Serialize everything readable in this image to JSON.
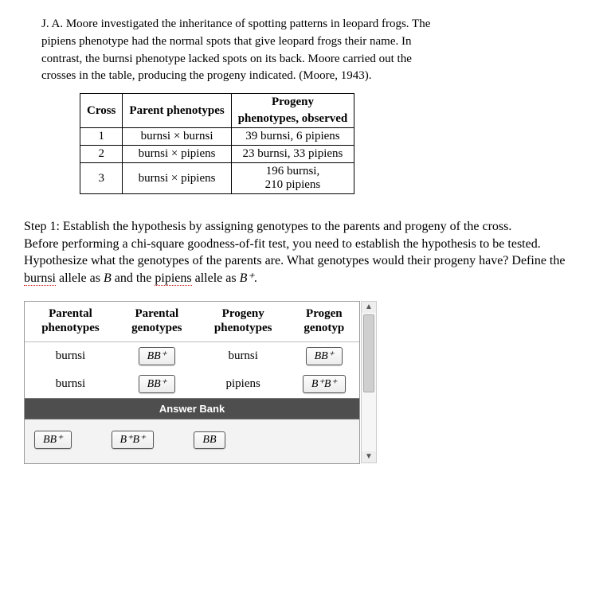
{
  "intro": "J. A. Moore investigated the inheritance of spotting patterns in leopard frogs. The pipiens phenotype had the normal spots that give leopard frogs their name. In contrast, the burnsi phenotype lacked spots on its back. Moore carried out the crosses in the table, producing the progeny indicated. (Moore, 1943).",
  "crossTable": {
    "headers": {
      "c1": "Cross",
      "c2": "Parent phenotypes",
      "c3a": "Progeny",
      "c3b": "phenotypes, observed"
    },
    "rows": [
      {
        "n": "1",
        "parents": "burnsi × burnsi",
        "progeny": "39 burnsi, 6 pipiens"
      },
      {
        "n": "2",
        "parents": "burnsi × pipiens",
        "progeny": "23 burnsi, 33 pipiens"
      },
      {
        "n": "3",
        "parents": "burnsi × pipiens",
        "progeny_line1": "196 burnsi,",
        "progeny_line2": "210 pipiens"
      }
    ]
  },
  "step": {
    "title": "Step 1: Establish the hypothesis by assigning genotypes to the parents and progeny of the cross.",
    "line2": "Before performing a chi-square goodness-of-fit test, you need to establish the hypothesis to be tested.",
    "line3_a": "Hypothesize what the genotypes of the parents are. What genotypes would their progeny have? Define the ",
    "burnsi": "burnsi",
    "mid1": " allele as ",
    "alleleB": "B",
    "mid2": " and the ",
    "pipiens": "pipiens",
    "mid3": " allele as ",
    "alleleBplus": "B⁺",
    "end": "."
  },
  "answerTable": {
    "headers": {
      "h1a": "Parental",
      "h1b": "phenotypes",
      "h2a": "Parental",
      "h2b": "genotypes",
      "h3a": "Progeny",
      "h3b": "phenotypes",
      "h4a": "Progen",
      "h4b": "genotyp"
    },
    "rows": [
      {
        "p_pheno": "burnsi",
        "p_geno": "BB⁺",
        "o_pheno": "burnsi",
        "o_geno": "BB⁺"
      },
      {
        "p_pheno": "burnsi",
        "p_geno": "BB⁺",
        "o_pheno": "pipiens",
        "o_geno": "B⁺B⁺"
      }
    ]
  },
  "bank": {
    "title": "Answer Bank",
    "items": [
      "BB⁺",
      "B⁺B⁺",
      "BB"
    ]
  }
}
